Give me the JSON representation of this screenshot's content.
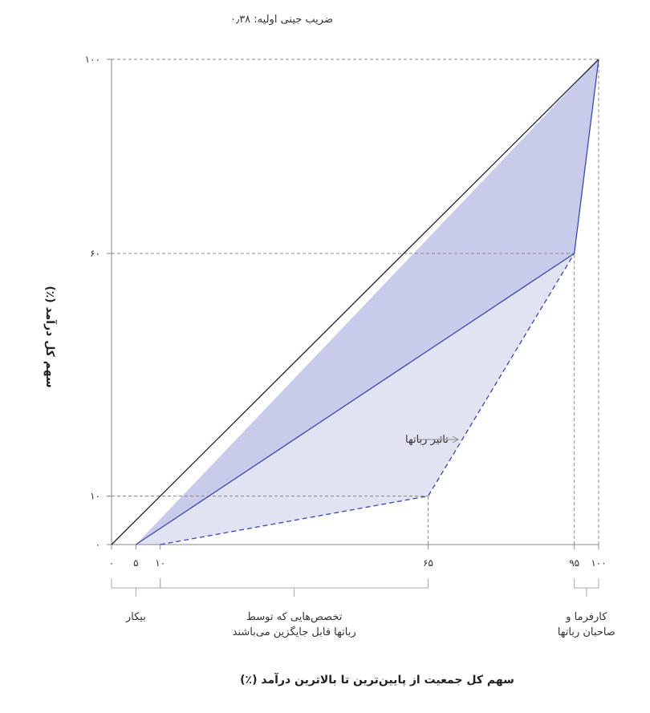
{
  "chart_data": {
    "type": "line",
    "subtitle": "ضریب جینی اولیه: ۰٫۳۸",
    "xlabel": "سهم کل جمعیت از پایین‌ترین تا بالاترین درآمد (٪)",
    "ylabel": "سهم کل درآمد (٪)",
    "xlim": [
      0,
      100
    ],
    "ylim": [
      0,
      100
    ],
    "x_ticks": [
      0,
      5,
      10,
      65,
      95,
      100
    ],
    "x_tick_labels": [
      "۰",
      "۵",
      "۱۰",
      "۶۵",
      "۹۵",
      "۱۰۰"
    ],
    "y_ticks": [
      0,
      10,
      60,
      100
    ],
    "y_tick_labels": [
      "۰",
      "۱۰",
      "۶۰",
      "۱۰۰"
    ],
    "series": [
      {
        "style": "solid",
        "color": "#1f1f3a",
        "points": [
          [
            0,
            0
          ],
          [
            100,
            100
          ]
        ]
      },
      {
        "style": "solid",
        "color": "#3a47b0",
        "points": [
          [
            5,
            0
          ],
          [
            95,
            60
          ],
          [
            100,
            100
          ]
        ]
      },
      {
        "style": "dashed",
        "color": "#3a47b0",
        "points": [
          [
            10,
            0
          ],
          [
            65,
            10
          ],
          [
            95,
            60
          ]
        ]
      }
    ],
    "fills": [
      {
        "color": "#c8cbe9",
        "between": "equality-line and initial curve"
      },
      {
        "color": "#e1e3f2",
        "between": "initial curve and dashed curve"
      }
    ],
    "guides": [
      {
        "axis": "y",
        "value": 10,
        "to_x": 65
      },
      {
        "axis": "y",
        "value": 60,
        "to_x": 95
      },
      {
        "axis": "y",
        "value": 100,
        "to_x": 100
      },
      {
        "axis": "x",
        "value": 65,
        "to_y": 10
      },
      {
        "axis": "x",
        "value": 95,
        "to_y": 60
      },
      {
        "axis": "x",
        "value": 100,
        "to_y": 100
      }
    ],
    "annotations": {
      "robots_effect": "تاثیر رباتها"
    },
    "groups": [
      {
        "range": [
          0,
          10
        ],
        "lines": [
          "بیکار"
        ]
      },
      {
        "range": [
          10,
          65
        ],
        "lines": [
          "تخصص‌هایی که توسط",
          "رباتها قابل جایگزین می‌باشند"
        ]
      },
      {
        "range": [
          95,
          100
        ],
        "lines": [
          "کارفرما و",
          "صاحبان رباتها"
        ]
      }
    ],
    "grid": false
  },
  "colors": {
    "axis": "#888888",
    "guide": "#888888",
    "dark_fill": "#c8cbe9",
    "light_fill": "#e1e3f2",
    "curve": "#3a47b0",
    "equality": "#1f1f3a"
  }
}
